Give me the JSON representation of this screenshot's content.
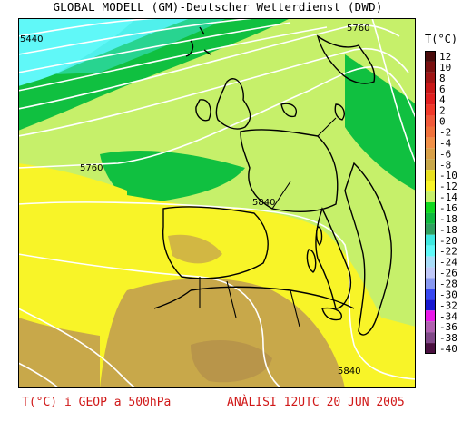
{
  "header": {
    "title": "GLOBAL MODELL (GM)-Deutscher Wetterdienst (DWD)"
  },
  "legend": {
    "title": "T(°C)",
    "items": [
      {
        "label": "12",
        "color": "#4a0b0b"
      },
      {
        "label": "10",
        "color": "#7a1010"
      },
      {
        "label": "8",
        "color": "#a01515"
      },
      {
        "label": "6",
        "color": "#c81818"
      },
      {
        "label": "4",
        "color": "#e02020"
      },
      {
        "label": "2",
        "color": "#f03a2a"
      },
      {
        "label": "0",
        "color": "#f05a3a"
      },
      {
        "label": "-2",
        "color": "#f0723c"
      },
      {
        "label": "-4",
        "color": "#f09048"
      },
      {
        "label": "-6",
        "color": "#d8a048"
      },
      {
        "label": "-8",
        "color": "#c8a84a"
      },
      {
        "label": "-10",
        "color": "#e8e020"
      },
      {
        "label": "-12",
        "color": "#f8f428"
      },
      {
        "label": "-14",
        "color": "#c6f06a"
      },
      {
        "label": "-16",
        "color": "#10d820"
      },
      {
        "label": "-18",
        "color": "#10b840"
      },
      {
        "label": "-18",
        "color": "#30a060"
      },
      {
        "label": "-20",
        "color": "#40e8e0"
      },
      {
        "label": "-22",
        "color": "#60f8f8"
      },
      {
        "label": "-24",
        "color": "#a8dcf8"
      },
      {
        "label": "-26",
        "color": "#c0c8f8"
      },
      {
        "label": "-28",
        "color": "#8898f0"
      },
      {
        "label": "-30",
        "color": "#3848f0"
      },
      {
        "label": "-32",
        "color": "#1818d0"
      },
      {
        "label": "-34",
        "color": "#e818e8"
      },
      {
        "label": "-36",
        "color": "#b060b0"
      },
      {
        "label": "-38",
        "color": "#804888"
      },
      {
        "label": "-40",
        "color": "#4a1040"
      }
    ]
  },
  "map": {
    "isolines": [
      {
        "label": "5440"
      },
      {
        "label": "5760"
      },
      {
        "label": "5760"
      },
      {
        "label": "5840"
      },
      {
        "label": "5840"
      }
    ]
  },
  "footer": {
    "left": "T(°C) i GEOP a 500hPa",
    "right": "ANÀLISI 12UTC 20 JUN 2005"
  }
}
